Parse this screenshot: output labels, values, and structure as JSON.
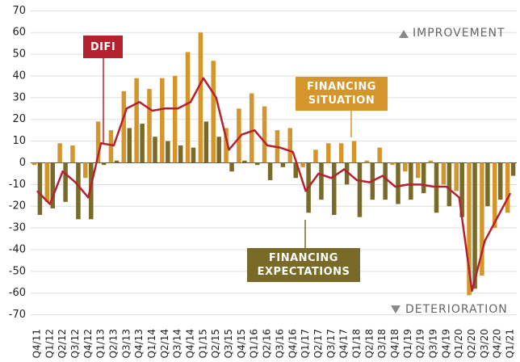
{
  "chart_data": {
    "type": "bar_line",
    "categories": [
      "Q4/11",
      "Q1/12",
      "Q2/12",
      "Q3/12",
      "Q4/12",
      "Q1/13",
      "Q2/13",
      "Q3/13",
      "Q4/13",
      "Q1/14",
      "Q2/14",
      "Q3/14",
      "Q4/14",
      "Q1/15",
      "Q2/15",
      "Q3/15",
      "Q4/15",
      "Q1/16",
      "Q2/16",
      "Q3/16",
      "Q4/16",
      "Q1/17",
      "Q2/17",
      "Q3/17",
      "Q4/17",
      "Q1/18",
      "Q2/18",
      "Q3/18",
      "Q4/18",
      "Q1/19",
      "Q2/19",
      "Q3/19",
      "Q4/19",
      "Q1/20",
      "Q2/20",
      "Q3/20",
      "Q4/20",
      "Q1/21"
    ],
    "series": [
      {
        "name": "FINANCING SITUATION",
        "type": "bar",
        "color": "#d4952b",
        "values": [
          -1,
          -18,
          9,
          8,
          -7,
          19,
          15,
          33,
          39,
          34,
          39,
          40,
          51,
          60,
          47,
          16,
          25,
          32,
          26,
          15,
          16,
          -2,
          6,
          9,
          9,
          10,
          1,
          7,
          -1,
          -4,
          -7,
          1,
          -10,
          -13,
          -61,
          -52,
          -30,
          -23
        ]
      },
      {
        "name": "FINANCING EXPECTATIONS",
        "type": "bar",
        "color": "#7a6a27",
        "values": [
          -24,
          -21,
          -18,
          -26,
          -26,
          -1,
          1,
          16,
          18,
          12,
          10,
          8,
          7,
          19,
          12,
          -4,
          1,
          -1,
          -8,
          -2,
          -7,
          -23,
          -17,
          -24,
          -10,
          -25,
          -17,
          -17,
          -19,
          -17,
          -14,
          -23,
          -20,
          -25,
          -58,
          -20,
          -17,
          -6
        ]
      },
      {
        "name": "DIFI",
        "type": "line",
        "color": "#b5212e",
        "values": [
          -13,
          -19,
          -4,
          -9,
          -16,
          9,
          8,
          25,
          28,
          24,
          25,
          25,
          28,
          39,
          30,
          6,
          13,
          15,
          8,
          7,
          5,
          -13,
          -5,
          -7,
          -3,
          -8,
          -9,
          -6,
          -11,
          -10,
          -10,
          -11,
          -11,
          -16,
          -59,
          -36,
          -25,
          -14
        ]
      }
    ],
    "annotations": [
      "IMPROVEMENT",
      "DETERIORATION"
    ],
    "ylim": [
      -75,
      72
    ],
    "yticks": [
      -70,
      -60,
      -50,
      -40,
      -30,
      -20,
      -10,
      0,
      10,
      20,
      30,
      40,
      50,
      60,
      70
    ],
    "grid": true
  }
}
